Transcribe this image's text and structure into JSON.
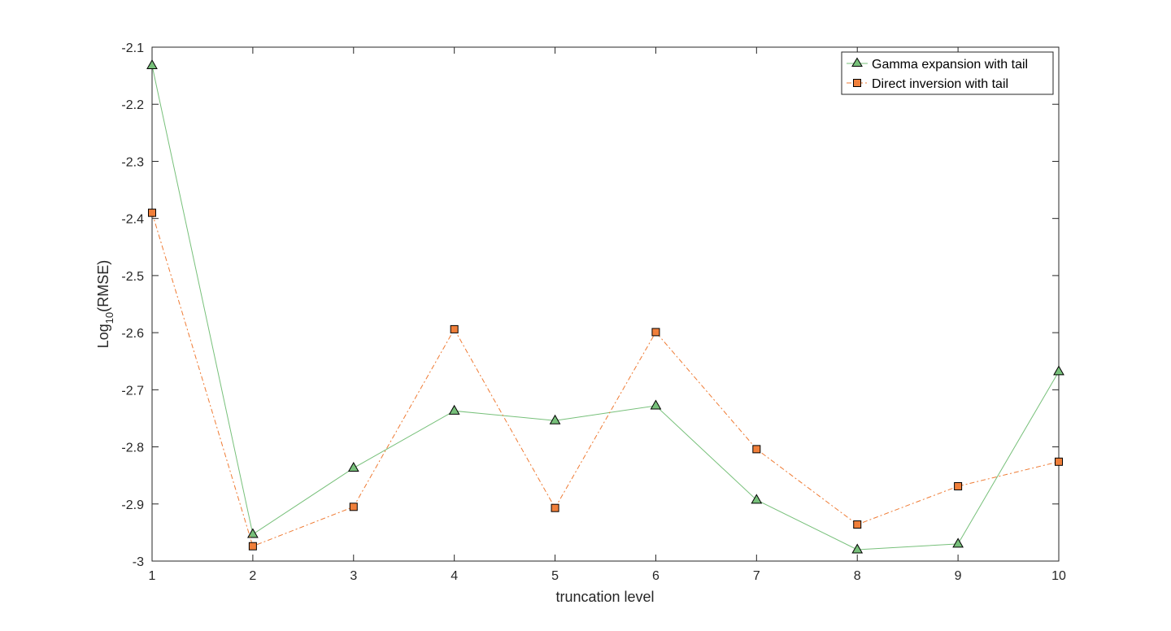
{
  "chart_data": {
    "type": "line",
    "xlabel": "truncation level",
    "ylabel": {
      "prefix": "Log",
      "subscript": "10",
      "suffix": "(RMSE)"
    },
    "xlim": [
      1,
      10
    ],
    "ylim": [
      -3,
      -2.1
    ],
    "xticks": [
      1,
      2,
      3,
      4,
      5,
      6,
      7,
      8,
      9,
      10
    ],
    "yticks": [
      -3,
      -2.9,
      -2.8,
      -2.7,
      -2.6,
      -2.5,
      -2.4,
      -2.3,
      -2.2,
      -2.1
    ],
    "grid": false,
    "legend_position": "top-right",
    "x": [
      1,
      2,
      3,
      4,
      5,
      6,
      7,
      8,
      9,
      10
    ],
    "series": [
      {
        "name": "Gamma expansion with tail",
        "values": [
          -2.132,
          -2.953,
          -2.837,
          -2.737,
          -2.754,
          -2.728,
          -2.893,
          -2.98,
          -2.97,
          -2.668
        ],
        "line_color": "#77c07a",
        "marker_color": "#77c07a",
        "marker": "triangle",
        "line_style": "solid"
      },
      {
        "name": "Direct inversion with tail",
        "values": [
          -2.39,
          -2.974,
          -2.905,
          -2.594,
          -2.907,
          -2.599,
          -2.804,
          -2.936,
          -2.869,
          -2.826
        ],
        "line_color": "#ef7b34",
        "marker_color": "#f07f3a",
        "marker": "square",
        "line_style": "dashdot"
      }
    ]
  }
}
